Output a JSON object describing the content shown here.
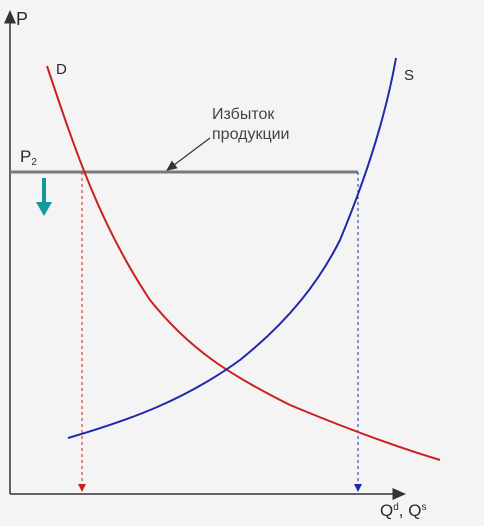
{
  "axes": {
    "y_label": "P",
    "x_label": {
      "q1": "Q",
      "q1_sup": "d",
      "sep": ", ",
      "q2": "Q",
      "q2_sup": "s"
    }
  },
  "curves": {
    "demand_label": "D",
    "supply_label": "S"
  },
  "price_level": {
    "symbol": "P",
    "subscript": "2"
  },
  "annotation": {
    "line1": "Избыток",
    "line2": "продукции"
  },
  "colors": {
    "demand": "#cc1f1f",
    "supply": "#1f2aa8",
    "price_line": "#7a7a7a",
    "down_arrow": "#129a9a",
    "axis": "#333333"
  }
}
